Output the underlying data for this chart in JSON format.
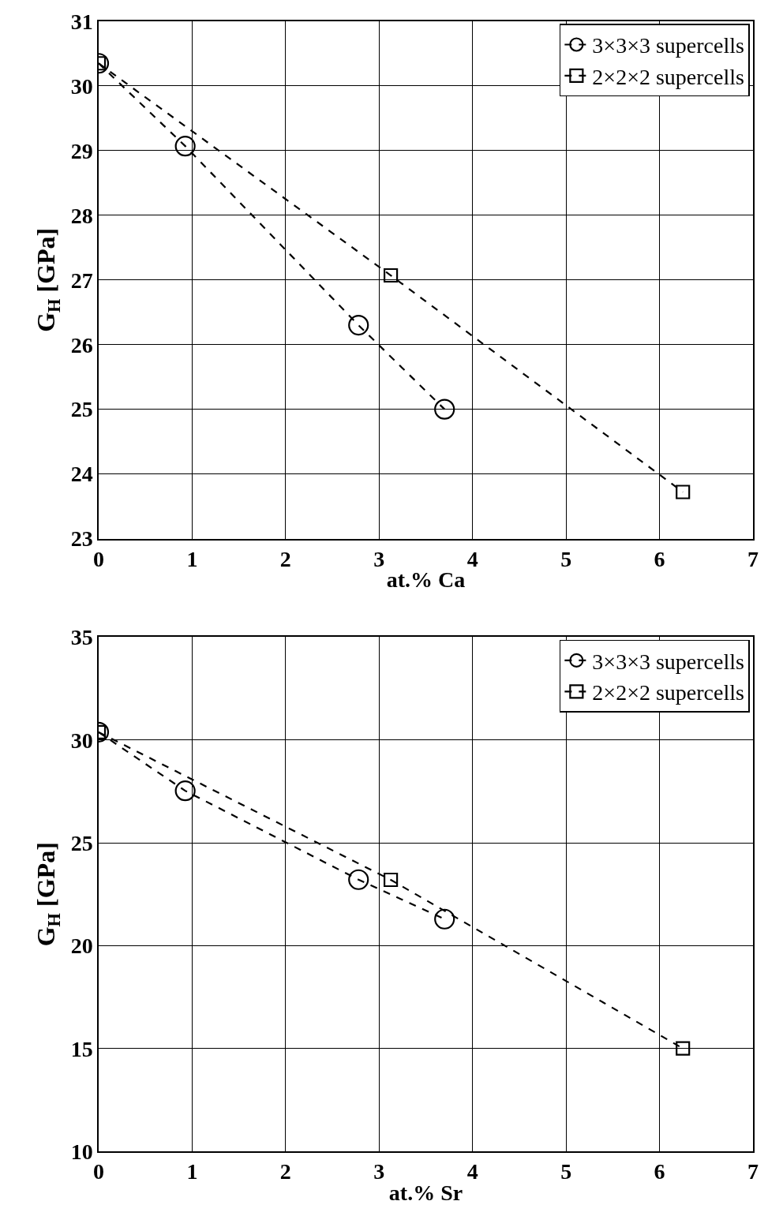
{
  "chart_data": [
    {
      "type": "line",
      "xlabel": "at.% Ca",
      "ylabel": "G$_{H}$ [GPa]",
      "xlim": [
        0,
        7
      ],
      "xticks": [
        0,
        1,
        2,
        3,
        4,
        5,
        6,
        7
      ],
      "ylim": [
        23,
        31
      ],
      "yticks": [
        23,
        24,
        25,
        26,
        27,
        28,
        29,
        30,
        31
      ],
      "grid": true,
      "legend": "top right",
      "line_style": "dashed",
      "series": [
        {
          "name": "3×3×3 supercells",
          "color": "#000000",
          "marker": "circle",
          "x": [
            0,
            0.926,
            2.78,
            3.7
          ],
          "values": [
            30.35,
            29.07,
            26.3,
            25.0
          ]
        },
        {
          "name": "2×2×2 supercells",
          "color": "#000000",
          "marker": "square",
          "x": [
            0,
            3.125,
            6.25
          ],
          "values": [
            30.35,
            27.07,
            23.72
          ]
        }
      ]
    },
    {
      "type": "line",
      "xlabel": "at.% Sr",
      "ylabel": "G$_{H}$ [GPa]",
      "xlim": [
        0,
        7
      ],
      "xticks": [
        0,
        1,
        2,
        3,
        4,
        5,
        6,
        7
      ],
      "ylim": [
        10,
        35
      ],
      "yticks": [
        10,
        15,
        20,
        25,
        30,
        35
      ],
      "grid": true,
      "legend": "top right",
      "line_style": "dashed",
      "series": [
        {
          "name": "3×3×3 supercells",
          "color": "#000000",
          "marker": "circle",
          "x": [
            0,
            0.926,
            2.78,
            3.7
          ],
          "values": [
            30.38,
            27.53,
            23.21,
            21.29
          ]
        },
        {
          "name": "2×2×2 supercells",
          "color": "#000000",
          "marker": "square",
          "x": [
            0,
            3.125,
            6.25
          ],
          "values": [
            30.38,
            23.2,
            15.0
          ]
        }
      ]
    }
  ]
}
